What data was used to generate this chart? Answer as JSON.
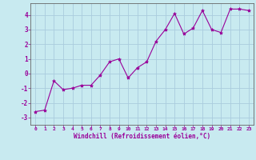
{
  "x": [
    0,
    1,
    2,
    3,
    4,
    5,
    6,
    7,
    8,
    9,
    10,
    11,
    12,
    13,
    14,
    15,
    16,
    17,
    18,
    19,
    20,
    21,
    22,
    23
  ],
  "y": [
    -2.6,
    -2.5,
    -0.5,
    -1.1,
    -1.0,
    -0.8,
    -0.8,
    -0.1,
    0.8,
    1.0,
    -0.3,
    0.4,
    0.8,
    2.2,
    3.0,
    4.1,
    2.7,
    3.1,
    4.3,
    3.0,
    2.8,
    4.4,
    4.4,
    4.3
  ],
  "line_color": "#990099",
  "marker": "*",
  "marker_size": 3,
  "bg_color": "#c8eaf0",
  "grid_color": "#aaccdd",
  "xlabel": "Windchill (Refroidissement éolien,°C)",
  "tick_color": "#990099",
  "label_color": "#990099",
  "ylim": [
    -3.5,
    4.8
  ],
  "xlim": [
    -0.5,
    23.5
  ],
  "yticks": [
    -3,
    -2,
    -1,
    0,
    1,
    2,
    3,
    4
  ],
  "xticks": [
    0,
    1,
    2,
    3,
    4,
    5,
    6,
    7,
    8,
    9,
    10,
    11,
    12,
    13,
    14,
    15,
    16,
    17,
    18,
    19,
    20,
    21,
    22,
    23
  ],
  "spine_color": "#666666",
  "figsize": [
    3.2,
    2.0
  ],
  "dpi": 100
}
